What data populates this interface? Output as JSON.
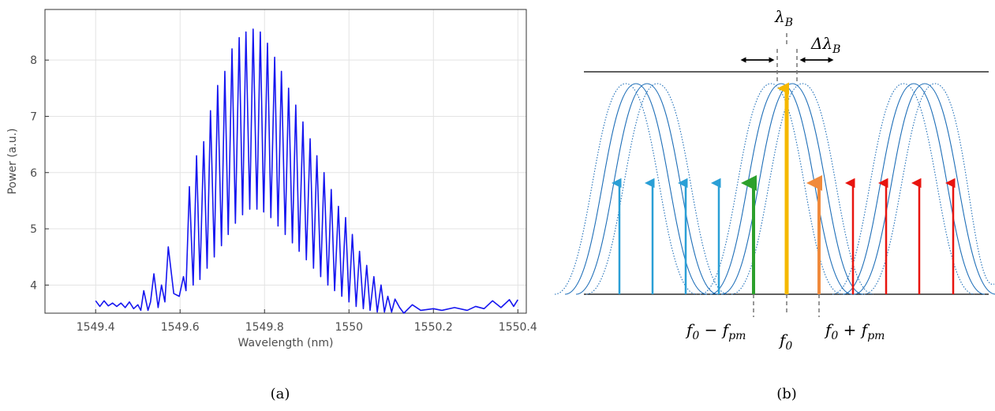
{
  "chart_data": {
    "type": "line",
    "x_label": "Wavelength (nm)",
    "y_label": "Power (a.u.)",
    "xlim": [
      1549.28,
      1550.42
    ],
    "ylim": [
      3.5,
      8.9
    ],
    "xticks": [
      1549.4,
      1549.6,
      1549.8,
      1550,
      1550.2,
      1550.4
    ],
    "yticks": [
      4,
      5,
      6,
      7,
      8
    ],
    "grid": true,
    "color": "#1515f0",
    "x": [
      1549.4,
      1549.41,
      1549.42,
      1549.43,
      1549.44,
      1549.45,
      1549.46,
      1549.47,
      1549.48,
      1549.49,
      1549.5,
      1549.507,
      1549.514,
      1549.524,
      1549.53,
      1549.538,
      1549.548,
      1549.556,
      1549.564,
      1549.572,
      1549.585,
      1549.598,
      1549.608,
      1549.614,
      1549.622,
      1549.631,
      1549.639,
      1549.647,
      1549.656,
      1549.664,
      1549.672,
      1549.681,
      1549.689,
      1549.698,
      1549.706,
      1549.714,
      1549.723,
      1549.731,
      1549.74,
      1549.748,
      1549.756,
      1549.765,
      1549.773,
      1549.782,
      1549.79,
      1549.798,
      1549.807,
      1549.815,
      1549.824,
      1549.832,
      1549.84,
      1549.849,
      1549.857,
      1549.866,
      1549.874,
      1549.882,
      1549.891,
      1549.899,
      1549.908,
      1549.916,
      1549.924,
      1549.933,
      1549.941,
      1549.95,
      1549.958,
      1549.966,
      1549.975,
      1549.983,
      1549.992,
      1550.0,
      1550.008,
      1550.017,
      1550.025,
      1550.034,
      1550.042,
      1550.05,
      1550.059,
      1550.067,
      1550.076,
      1550.084,
      1550.092,
      1550.101,
      1550.109,
      1550.12,
      1550.13,
      1550.15,
      1550.17,
      1550.2,
      1550.22,
      1550.25,
      1550.28,
      1550.3,
      1550.32,
      1550.34,
      1550.36,
      1550.38,
      1550.39,
      1550.4
    ],
    "values": [
      3.72,
      3.62,
      3.72,
      3.63,
      3.68,
      3.62,
      3.68,
      3.6,
      3.7,
      3.58,
      3.65,
      3.55,
      3.9,
      3.55,
      3.7,
      4.2,
      3.6,
      4.0,
      3.7,
      4.68,
      3.85,
      3.8,
      4.15,
      3.9,
      5.75,
      4.0,
      6.3,
      4.1,
      6.55,
      4.3,
      7.1,
      4.5,
      7.55,
      4.7,
      7.8,
      4.9,
      8.2,
      5.1,
      8.4,
      5.25,
      8.5,
      5.35,
      8.55,
      5.35,
      8.5,
      5.3,
      8.3,
      5.2,
      8.05,
      5.05,
      7.8,
      4.9,
      7.5,
      4.75,
      7.2,
      4.6,
      6.9,
      4.45,
      6.6,
      4.3,
      6.3,
      4.15,
      6.0,
      4.0,
      5.7,
      3.9,
      5.4,
      3.8,
      5.2,
      3.7,
      4.9,
      3.62,
      4.6,
      3.58,
      4.35,
      3.55,
      4.15,
      3.52,
      4.0,
      3.52,
      3.8,
      3.52,
      3.75,
      3.6,
      3.5,
      3.65,
      3.55,
      3.58,
      3.55,
      3.6,
      3.55,
      3.62,
      3.58,
      3.72,
      3.6,
      3.74,
      3.62,
      3.74
    ]
  },
  "diagram": {
    "lambda_b": [
      "λ",
      "B"
    ],
    "delta_lambda_b": [
      "Δλ",
      "B"
    ],
    "f0_minus_fpm": [
      "f",
      "0",
      " − f",
      "pm"
    ],
    "f0": [
      "f",
      "0"
    ],
    "f0_plus_fpm": [
      "f",
      "0",
      " + f",
      "pm"
    ]
  },
  "captions": [
    "(a)",
    "(b)"
  ]
}
